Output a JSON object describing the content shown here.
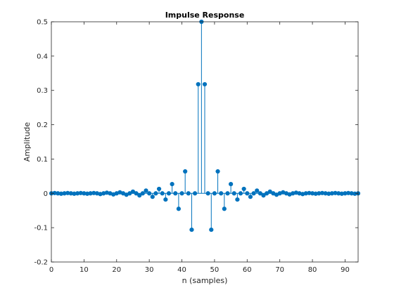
{
  "chart_data": {
    "type": "stem",
    "title": "Impulse Response",
    "xlabel": "n (samples)",
    "ylabel": "Amplitude",
    "xlim": [
      0,
      94
    ],
    "ylim": [
      -0.2,
      0.5
    ],
    "xticks": [
      0,
      10,
      20,
      30,
      40,
      50,
      60,
      70,
      80,
      90
    ],
    "xtick_labels": [
      "0",
      "10",
      "20",
      "30",
      "40",
      "50",
      "60",
      "70",
      "80",
      "90"
    ],
    "yticks": [
      -0.2,
      -0.1,
      0,
      0.1,
      0.2,
      0.3,
      0.4,
      0.5
    ],
    "ytick_labels": [
      "-0.2",
      "-0.1",
      "0",
      "0.1",
      "0.2",
      "0.3",
      "0.4",
      "0.5"
    ],
    "grid": false,
    "box": true,
    "color": "#0072bd",
    "series": [
      {
        "x": [
          0,
          1,
          2,
          3,
          4,
          5,
          6,
          7,
          8,
          9,
          10,
          11,
          12,
          13,
          14,
          15,
          16,
          17,
          18,
          19,
          20,
          21,
          22,
          23,
          24,
          25,
          26,
          27,
          28,
          29,
          30,
          31,
          32,
          33,
          34,
          35,
          36,
          37,
          38,
          39,
          40,
          41,
          42,
          43,
          44,
          45,
          46,
          47,
          48,
          49,
          50,
          51,
          52,
          53,
          54,
          55,
          56,
          57,
          58,
          59,
          60,
          61,
          62,
          63,
          64,
          65,
          66,
          67,
          68,
          69,
          70,
          71,
          72,
          73,
          74,
          75,
          76,
          77,
          78,
          79,
          80,
          81,
          82,
          83,
          84,
          85,
          86,
          87,
          88,
          89,
          90,
          91,
          92,
          93,
          94
        ],
        "values": [
          0,
          0.001,
          0,
          -0.001,
          0,
          0.001,
          0,
          -0.001,
          0,
          0.001,
          0,
          -0.001,
          0,
          0.001,
          0,
          -0.002,
          0,
          0.002,
          0,
          -0.003,
          0,
          0.003,
          0,
          -0.004,
          0,
          0.005,
          0,
          -0.006,
          0,
          0.008,
          0,
          -0.01,
          0,
          0.013,
          0,
          -0.018,
          0,
          0.027,
          0,
          -0.045,
          0,
          0.064,
          0,
          -0.106,
          0,
          0.318,
          0.5,
          0.318,
          0,
          -0.106,
          0,
          0.064,
          0,
          -0.045,
          0,
          0.027,
          0,
          -0.018,
          0,
          0.013,
          0,
          -0.01,
          0,
          0.008,
          0,
          -0.006,
          0,
          0.005,
          0,
          -0.004,
          0,
          0.003,
          0,
          -0.003,
          0,
          0.002,
          0,
          -0.002,
          0,
          0.001,
          0,
          -0.001,
          0,
          0.001,
          0,
          -0.001,
          0,
          0.001,
          0,
          -0.001,
          0,
          0.001,
          0,
          -0.001,
          0
        ]
      }
    ]
  }
}
